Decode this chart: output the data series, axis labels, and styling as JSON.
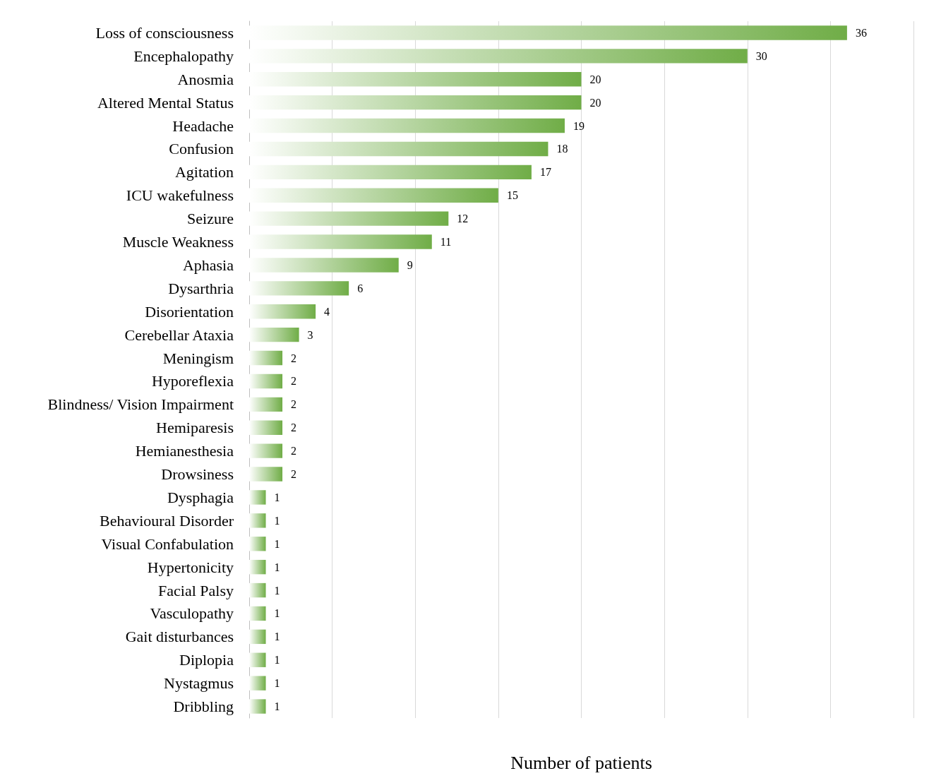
{
  "chart_data": {
    "type": "bar",
    "orientation": "horizontal",
    "xlabel": "Number of patients",
    "categories": [
      "Loss of consciousness",
      "Encephalopathy",
      "Anosmia",
      "Altered Mental Status",
      "Headache",
      "Confusion",
      "Agitation",
      "ICU wakefulness",
      "Seizure",
      "Muscle Weakness",
      "Aphasia",
      "Dysarthria",
      "Disorientation",
      "Cerebellar Ataxia",
      "Meningism",
      "Hyporeflexia",
      "Blindness/ Vision Impairment",
      "Hemiparesis",
      "Hemianesthesia",
      "Drowsiness",
      "Dysphagia",
      "Behavioural Disorder",
      "Visual Confabulation",
      "Hypertonicity",
      "Facial Palsy",
      "Vasculopathy",
      "Gait disturbances",
      "Diplopia",
      "Nystagmus",
      "Dribbling"
    ],
    "values": [
      36,
      30,
      20,
      20,
      19,
      18,
      17,
      15,
      12,
      11,
      9,
      6,
      4,
      3,
      2,
      2,
      2,
      2,
      2,
      2,
      1,
      1,
      1,
      1,
      1,
      1,
      1,
      1,
      1,
      1
    ],
    "color": "#70ad47",
    "xlim": [
      0,
      40
    ],
    "xticks": [
      0,
      5,
      10,
      15,
      20,
      25,
      30,
      35,
      40
    ],
    "tick_labels": "y",
    "grid": "x",
    "data_labels": true
  }
}
